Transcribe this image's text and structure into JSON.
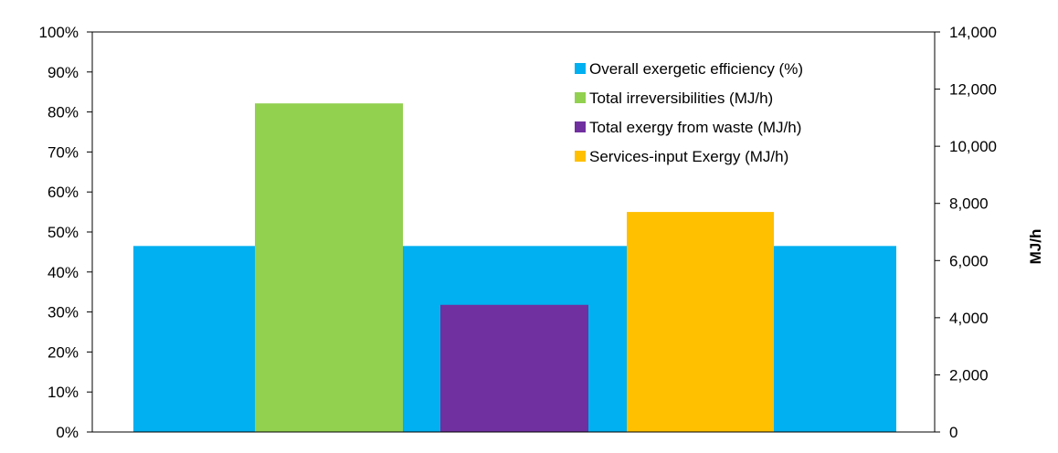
{
  "chart_data": {
    "type": "bar",
    "title": "",
    "xlabel": "",
    "ylabel_left": "",
    "ylabel_right": "MJ/h",
    "ylim_left": [
      0,
      100
    ],
    "ylim_right": [
      0,
      14000
    ],
    "y_left_ticks": [
      "0%",
      "10%",
      "20%",
      "30%",
      "40%",
      "50%",
      "60%",
      "70%",
      "80%",
      "90%",
      "100%"
    ],
    "y_right_ticks": [
      "0",
      "2,000",
      "4,000",
      "6,000",
      "8,000",
      "10,000",
      "12,000",
      "14,000"
    ],
    "grid": false,
    "legend_position": "top-right",
    "series": [
      {
        "name": "Overall exergetic efficiency (%)",
        "axis": "left",
        "value": 46.5,
        "color": "#00B0F0"
      },
      {
        "name": "Total irreversibilities (MJ/h)",
        "axis": "right",
        "value": 11500,
        "color": "#92D050"
      },
      {
        "name": "Total exergy from waste (MJ/h)",
        "axis": "right",
        "value": 4450,
        "color": "#7030A0"
      },
      {
        "name": "Services-input Exergy (MJ/h)",
        "axis": "right",
        "value": 7700,
        "color": "#FFC000"
      }
    ]
  }
}
